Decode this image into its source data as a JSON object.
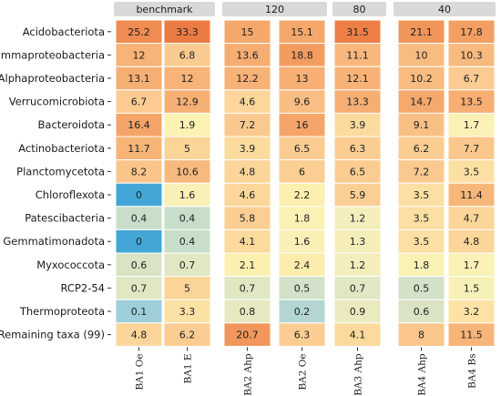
{
  "chart_data": {
    "type": "heatmap",
    "facets": [
      {
        "label": "benchmark",
        "columns": [
          "BA1 Oe",
          "BA1 E"
        ]
      },
      {
        "label": "120",
        "columns": [
          "BA2 Ahp",
          "BA2 Oe"
        ]
      },
      {
        "label": "80",
        "columns": [
          "BA3 Ahp"
        ]
      },
      {
        "label": "40",
        "columns": [
          "BA4 Ahp",
          "BA4 Bs"
        ]
      }
    ],
    "rows": [
      "Acidobacteriota",
      "Gammaproteobacteria",
      "Alphaproteobacteria",
      "Verrucomicrobiota",
      "Bacteroidota",
      "Actinobacteriota",
      "Planctomycetota",
      "Chloroflexota",
      "Patescibacteria",
      "Gemmatimonadota",
      "Myxococcota",
      "RCP2-54",
      "Thermoproteota",
      "Remaining taxa (99)"
    ],
    "values": [
      [
        "25.2",
        "33.3",
        "15",
        "15.1",
        "31.5",
        "21.1",
        "17.8"
      ],
      [
        "12",
        "6.8",
        "13.6",
        "18.8",
        "11.1",
        "10",
        "10.3"
      ],
      [
        "13.1",
        "12",
        "12.2",
        "13",
        "12.1",
        "10.2",
        "6.7"
      ],
      [
        "6.7",
        "12.9",
        "4.6",
        "9.6",
        "13.3",
        "14.7",
        "13.5"
      ],
      [
        "16.4",
        "1.9",
        "7.2",
        "16",
        "3.9",
        "9.1",
        "1.7"
      ],
      [
        "11.7",
        "5",
        "3.9",
        "6.5",
        "6.3",
        "6.2",
        "7.7"
      ],
      [
        "8.2",
        "10.6",
        "4.8",
        "6",
        "6.5",
        "7.2",
        "3.5"
      ],
      [
        "0",
        "1.6",
        "4.6",
        "2.2",
        "5.9",
        "3.5",
        "11.4"
      ],
      [
        "0.4",
        "0.4",
        "5.8",
        "1.8",
        "1.2",
        "3.5",
        "4.7"
      ],
      [
        "0",
        "0.4",
        "4.1",
        "1.6",
        "1.3",
        "3.5",
        "4.8"
      ],
      [
        "0.6",
        "0.7",
        "2.1",
        "2.4",
        "1.2",
        "1.8",
        "1.7"
      ],
      [
        "0.7",
        "5",
        "0.7",
        "0.5",
        "0.7",
        "0.5",
        "1.5"
      ],
      [
        "0.1",
        "3.3",
        "0.8",
        "0.2",
        "0.9",
        "0.6",
        "3.2"
      ],
      [
        "4.8",
        "6.2",
        "20.7",
        "6.3",
        "4.1",
        "8",
        "11.5"
      ]
    ]
  }
}
